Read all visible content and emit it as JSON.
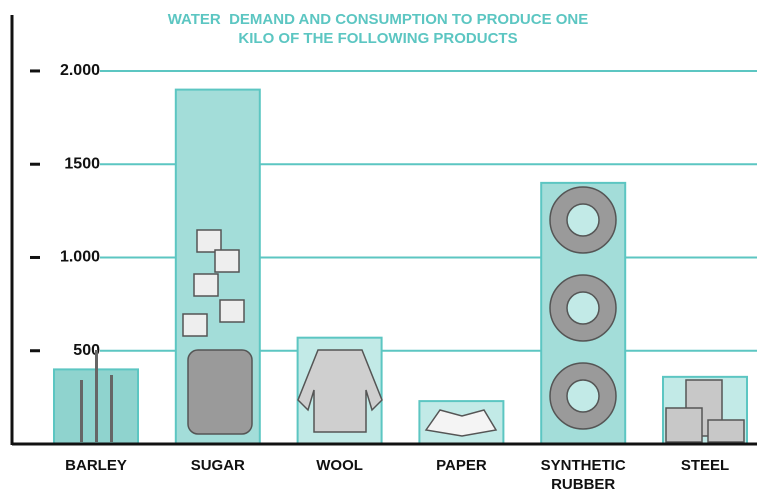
{
  "chart_data": {
    "type": "bar",
    "title": "WATER  DEMAND AND CONSUMPTION TO PRODUCE ONE KILO OF THE FOLLOWING PRODUCTS",
    "categories": [
      "BARLEY",
      "SUGAR",
      "WOOL",
      "PAPER",
      "SYNTHETIC RUBBER",
      "STEEL"
    ],
    "values": [
      400,
      1900,
      570,
      230,
      1400,
      360
    ],
    "colors": [
      "#8fd3ce",
      "#a3ddd9",
      "#c2eae7",
      "#c2eae7",
      "#a3ddd9",
      "#c2eae7"
    ],
    "ylim": [
      0,
      2300
    ],
    "yticks": [
      {
        "value": 500,
        "label": "500"
      },
      {
        "value": 1000,
        "label": "1.000"
      },
      1500,
      {
        "value": 2000,
        "label": "2.000"
      }
    ],
    "grid": true,
    "grid_color": "#5cc6c2"
  }
}
